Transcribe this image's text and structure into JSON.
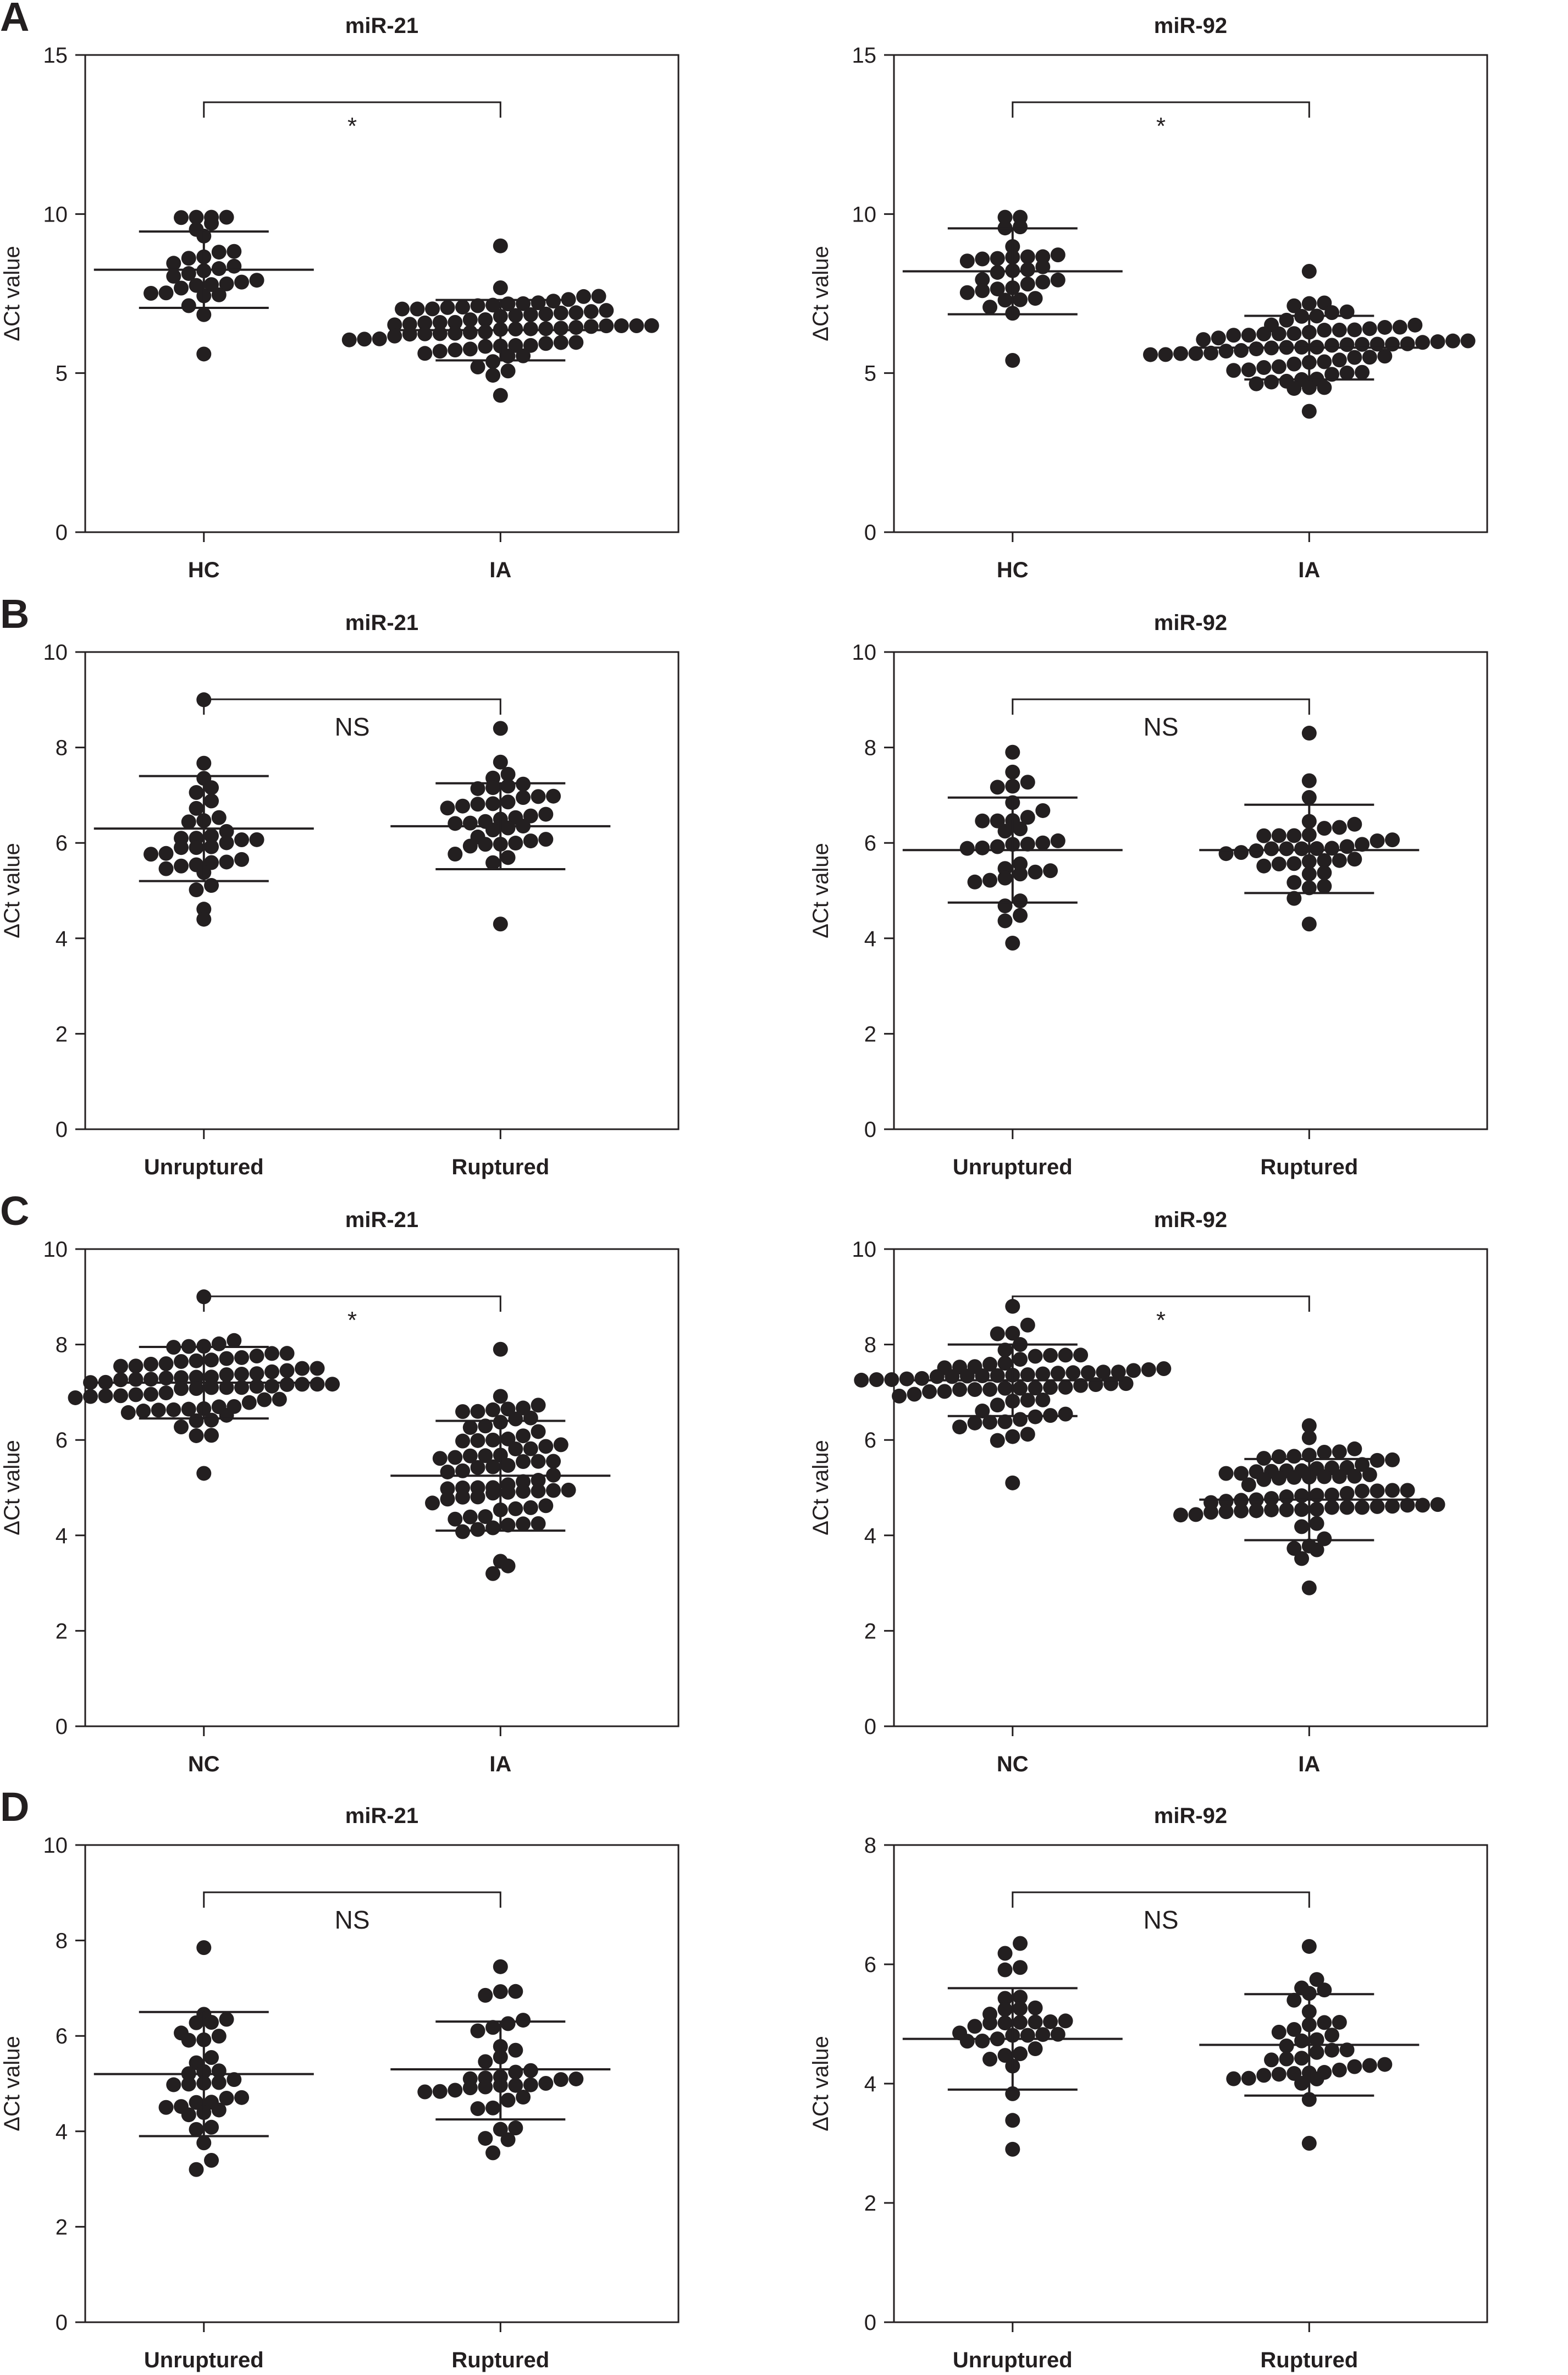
{
  "figure": {
    "rows": [
      {
        "letter": "A"
      },
      {
        "letter": "B"
      },
      {
        "letter": "C"
      },
      {
        "letter": "D"
      }
    ]
  },
  "colors": {
    "axis": "#231f20",
    "point": "#231f20",
    "background": "#ffffff"
  },
  "chart_data": [
    {
      "type": "scatter",
      "panel": "A",
      "title": "miR-21",
      "xlabel": "",
      "ylabel": "ΔCt value",
      "ylim": [
        0,
        15
      ],
      "yticks": [
        0,
        5,
        10,
        15
      ],
      "grid": false,
      "categories": [
        "HC",
        "IA"
      ],
      "significance": "*",
      "groups": [
        {
          "name": "HC",
          "mean": 8.25,
          "sd_low": 7.05,
          "sd_high": 9.45,
          "n": 30,
          "min": 5.6,
          "max": 9.9
        },
        {
          "name": "IA",
          "mean": 6.35,
          "sd_low": 5.4,
          "sd_high": 7.3,
          "n": 70,
          "min": 4.3,
          "max": 9.0
        }
      ]
    },
    {
      "type": "scatter",
      "panel": "A",
      "title": "miR-92",
      "xlabel": "",
      "ylabel": "ΔCt value",
      "ylim": [
        0,
        15
      ],
      "yticks": [
        0,
        5,
        10,
        15
      ],
      "grid": false,
      "categories": [
        "HC",
        "IA"
      ],
      "significance": "*",
      "groups": [
        {
          "name": "HC",
          "mean": 8.2,
          "sd_low": 6.85,
          "sd_high": 9.55,
          "n": 30,
          "min": 5.4,
          "max": 9.9
        },
        {
          "name": "IA",
          "mean": 5.8,
          "sd_low": 4.8,
          "sd_high": 6.8,
          "n": 70,
          "min": 3.8,
          "max": 8.2
        }
      ]
    },
    {
      "type": "scatter",
      "panel": "B",
      "title": "miR-21",
      "xlabel": "",
      "ylabel": "ΔCt value",
      "ylim": [
        0,
        10
      ],
      "yticks": [
        0,
        2,
        4,
        6,
        8,
        10
      ],
      "grid": false,
      "categories": [
        "Unruptured",
        "Ruptured"
      ],
      "significance": "NS",
      "groups": [
        {
          "name": "Unruptured",
          "mean": 6.3,
          "sd_low": 5.2,
          "sd_high": 7.4,
          "n": 33,
          "min": 4.4,
          "max": 9.0
        },
        {
          "name": "Ruptured",
          "mean": 6.35,
          "sd_low": 5.45,
          "sd_high": 7.25,
          "n": 37,
          "min": 4.3,
          "max": 8.4
        }
      ]
    },
    {
      "type": "scatter",
      "panel": "B",
      "title": "miR-92",
      "xlabel": "",
      "ylabel": "ΔCt value",
      "ylim": [
        0,
        10
      ],
      "yticks": [
        0,
        2,
        4,
        6,
        8,
        10
      ],
      "grid": false,
      "categories": [
        "Unruptured",
        "Ruptured"
      ],
      "significance": "NS",
      "groups": [
        {
          "name": "Unruptured",
          "mean": 5.85,
          "sd_low": 4.75,
          "sd_high": 6.95,
          "n": 33,
          "min": 3.9,
          "max": 7.9
        },
        {
          "name": "Ruptured",
          "mean": 5.85,
          "sd_low": 4.95,
          "sd_high": 6.8,
          "n": 37,
          "min": 4.3,
          "max": 8.3
        }
      ]
    },
    {
      "type": "scatter",
      "panel": "C",
      "title": "miR-21",
      "xlabel": "",
      "ylabel": "ΔCt value",
      "ylim": [
        0,
        10
      ],
      "yticks": [
        0,
        2,
        4,
        6,
        8,
        10
      ],
      "grid": false,
      "categories": [
        "NC",
        "IA"
      ],
      "significance": "*",
      "groups": [
        {
          "name": "NC",
          "mean": 7.2,
          "sd_low": 6.45,
          "sd_high": 7.95,
          "n": 70,
          "min": 5.3,
          "max": 9.0
        },
        {
          "name": "IA",
          "mean": 5.25,
          "sd_low": 4.1,
          "sd_high": 6.4,
          "n": 70,
          "min": 3.2,
          "max": 7.9
        }
      ]
    },
    {
      "type": "scatter",
      "panel": "C",
      "title": "miR-92",
      "xlabel": "",
      "ylabel": "ΔCt value",
      "ylim": [
        0,
        10
      ],
      "yticks": [
        0,
        2,
        4,
        6,
        8,
        10
      ],
      "grid": false,
      "categories": [
        "NC",
        "IA"
      ],
      "significance": "*",
      "groups": [
        {
          "name": "NC",
          "mean": 7.25,
          "sd_low": 6.5,
          "sd_high": 8.0,
          "n": 70,
          "min": 5.1,
          "max": 8.8
        },
        {
          "name": "IA",
          "mean": 4.75,
          "sd_low": 3.9,
          "sd_high": 5.6,
          "n": 70,
          "min": 2.9,
          "max": 6.3
        }
      ]
    },
    {
      "type": "scatter",
      "panel": "D",
      "title": "miR-21",
      "xlabel": "",
      "ylabel": "ΔCt value",
      "ylim": [
        0,
        10
      ],
      "yticks": [
        0,
        2,
        4,
        6,
        8,
        10
      ],
      "grid": false,
      "categories": [
        "Unruptured",
        "Ruptured"
      ],
      "significance": "NS",
      "groups": [
        {
          "name": "Unruptured",
          "mean": 5.2,
          "sd_low": 3.9,
          "sd_high": 6.5,
          "n": 33,
          "min": 3.2,
          "max": 7.85
        },
        {
          "name": "Ruptured",
          "mean": 5.3,
          "sd_low": 4.25,
          "sd_high": 6.3,
          "n": 37,
          "min": 3.55,
          "max": 7.45
        }
      ]
    },
    {
      "type": "scatter",
      "panel": "D",
      "title": "miR-92",
      "xlabel": "",
      "ylabel": "ΔCt value",
      "ylim": [
        0,
        8
      ],
      "yticks": [
        0,
        2,
        4,
        6,
        8
      ],
      "grid": false,
      "categories": [
        "Unruptured",
        "Ruptured"
      ],
      "significance": "NS",
      "groups": [
        {
          "name": "Unruptured",
          "mean": 4.75,
          "sd_low": 3.9,
          "sd_high": 5.6,
          "n": 33,
          "min": 2.9,
          "max": 6.35
        },
        {
          "name": "Ruptured",
          "mean": 4.65,
          "sd_low": 3.8,
          "sd_high": 5.5,
          "n": 37,
          "min": 3.0,
          "max": 6.3
        }
      ]
    }
  ]
}
